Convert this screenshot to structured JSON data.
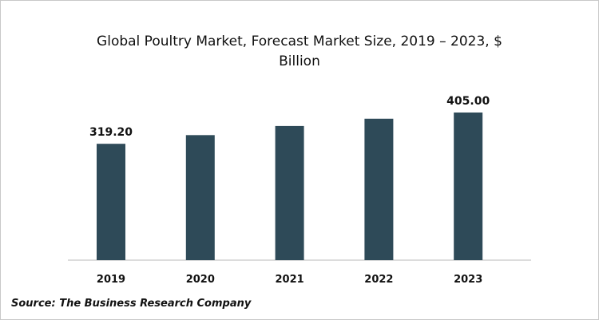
{
  "chart_data": {
    "type": "bar",
    "title_line1": "Global Poultry Market, Forecast Market Size, 2019 – 2023, $",
    "title_line2": "Billion",
    "categories": [
      "2019",
      "2020",
      "2021",
      "2022",
      "2023"
    ],
    "values": [
      319.2,
      343,
      368,
      388,
      405.0
    ],
    "data_labels": [
      "319.20",
      "",
      "",
      "",
      "405.00"
    ],
    "xlabel": "",
    "ylabel": "",
    "ylim": [
      0,
      405
    ],
    "grid": false,
    "bar_color": "#2e4a58",
    "source": "Source: The Business Research Company"
  }
}
